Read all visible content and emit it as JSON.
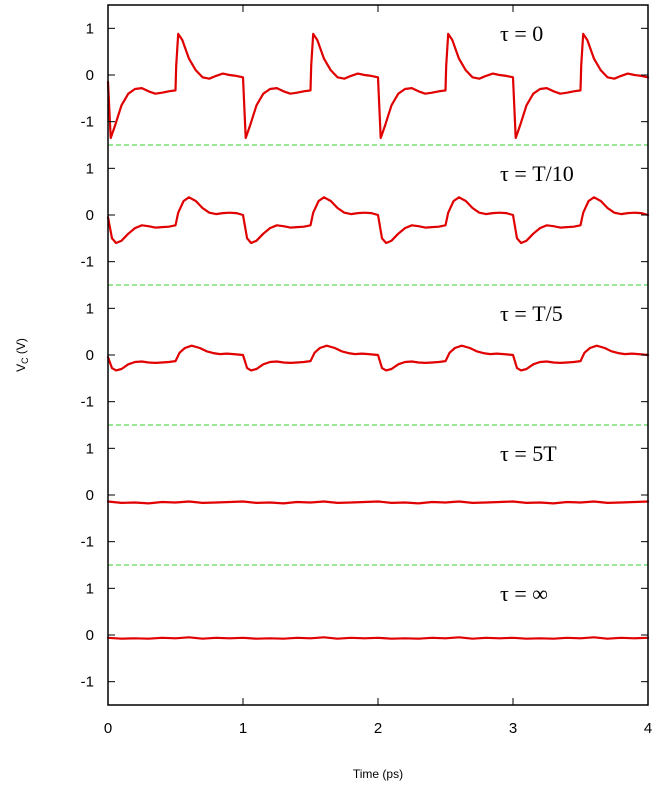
{
  "chart_data": {
    "type": "line",
    "xlabel": "Time (ps)",
    "ylabel_main": "V",
    "ylabel_sub": "C",
    "ylabel_unit": " (V)",
    "xlim": [
      0,
      4
    ],
    "x_ticks": [
      "0",
      "1",
      "2",
      "3",
      "4"
    ],
    "y_ticks": [
      "1",
      "0",
      "-1"
    ],
    "panel_ylim": [
      -1.5,
      1.5
    ],
    "colors": {
      "signal": "#e00000",
      "separator": "#33cc33"
    },
    "panels": [
      {
        "label": "τ = 0",
        "period_points": [
          [
            0.0,
            -0.15
          ],
          [
            0.02,
            -1.35
          ],
          [
            0.05,
            -1.1
          ],
          [
            0.1,
            -0.65
          ],
          [
            0.15,
            -0.4
          ],
          [
            0.2,
            -0.3
          ],
          [
            0.25,
            -0.28
          ],
          [
            0.3,
            -0.35
          ],
          [
            0.35,
            -0.4
          ],
          [
            0.4,
            -0.38
          ],
          [
            0.45,
            -0.35
          ],
          [
            0.5,
            -0.33
          ],
          [
            0.505,
            0.2
          ],
          [
            0.52,
            0.88
          ],
          [
            0.55,
            0.75
          ],
          [
            0.6,
            0.35
          ],
          [
            0.65,
            0.1
          ],
          [
            0.7,
            -0.05
          ],
          [
            0.75,
            -0.08
          ],
          [
            0.8,
            -0.02
          ],
          [
            0.85,
            0.03
          ],
          [
            0.9,
            0.0
          ],
          [
            0.95,
            -0.02
          ],
          [
            1.0,
            -0.05
          ]
        ]
      },
      {
        "label": "τ = T/10",
        "period_points": [
          [
            0.0,
            -0.05
          ],
          [
            0.03,
            -0.5
          ],
          [
            0.06,
            -0.6
          ],
          [
            0.1,
            -0.55
          ],
          [
            0.15,
            -0.4
          ],
          [
            0.2,
            -0.28
          ],
          [
            0.25,
            -0.22
          ],
          [
            0.3,
            -0.24
          ],
          [
            0.35,
            -0.27
          ],
          [
            0.4,
            -0.26
          ],
          [
            0.45,
            -0.25
          ],
          [
            0.5,
            -0.22
          ],
          [
            0.52,
            0.05
          ],
          [
            0.56,
            0.3
          ],
          [
            0.6,
            0.38
          ],
          [
            0.65,
            0.3
          ],
          [
            0.7,
            0.15
          ],
          [
            0.75,
            0.05
          ],
          [
            0.8,
            0.02
          ],
          [
            0.85,
            0.04
          ],
          [
            0.9,
            0.05
          ],
          [
            0.95,
            0.04
          ],
          [
            1.0,
            0.0
          ]
        ]
      },
      {
        "label": "τ = T/5",
        "period_points": [
          [
            0.0,
            -0.05
          ],
          [
            0.03,
            -0.28
          ],
          [
            0.06,
            -0.33
          ],
          [
            0.1,
            -0.3
          ],
          [
            0.15,
            -0.2
          ],
          [
            0.2,
            -0.15
          ],
          [
            0.25,
            -0.14
          ],
          [
            0.3,
            -0.16
          ],
          [
            0.35,
            -0.17
          ],
          [
            0.4,
            -0.16
          ],
          [
            0.45,
            -0.15
          ],
          [
            0.5,
            -0.13
          ],
          [
            0.53,
            0.05
          ],
          [
            0.57,
            0.15
          ],
          [
            0.62,
            0.2
          ],
          [
            0.68,
            0.15
          ],
          [
            0.73,
            0.08
          ],
          [
            0.78,
            0.04
          ],
          [
            0.83,
            0.02
          ],
          [
            0.88,
            0.03
          ],
          [
            0.93,
            0.02
          ],
          [
            1.0,
            0.0
          ]
        ]
      },
      {
        "label": "τ = 5T",
        "period_points": [
          [
            0.0,
            -0.14
          ],
          [
            0.1,
            -0.17
          ],
          [
            0.2,
            -0.16
          ],
          [
            0.3,
            -0.18
          ],
          [
            0.4,
            -0.15
          ],
          [
            0.5,
            -0.16
          ],
          [
            0.6,
            -0.14
          ],
          [
            0.7,
            -0.17
          ],
          [
            0.8,
            -0.16
          ],
          [
            0.9,
            -0.15
          ],
          [
            1.0,
            -0.14
          ]
        ]
      },
      {
        "label": "τ = ∞",
        "period_points": [
          [
            0.0,
            -0.06
          ],
          [
            0.1,
            -0.08
          ],
          [
            0.2,
            -0.07
          ],
          [
            0.3,
            -0.08
          ],
          [
            0.4,
            -0.06
          ],
          [
            0.5,
            -0.07
          ],
          [
            0.6,
            -0.05
          ],
          [
            0.7,
            -0.08
          ],
          [
            0.8,
            -0.06
          ],
          [
            0.9,
            -0.07
          ],
          [
            1.0,
            -0.06
          ]
        ]
      }
    ]
  }
}
